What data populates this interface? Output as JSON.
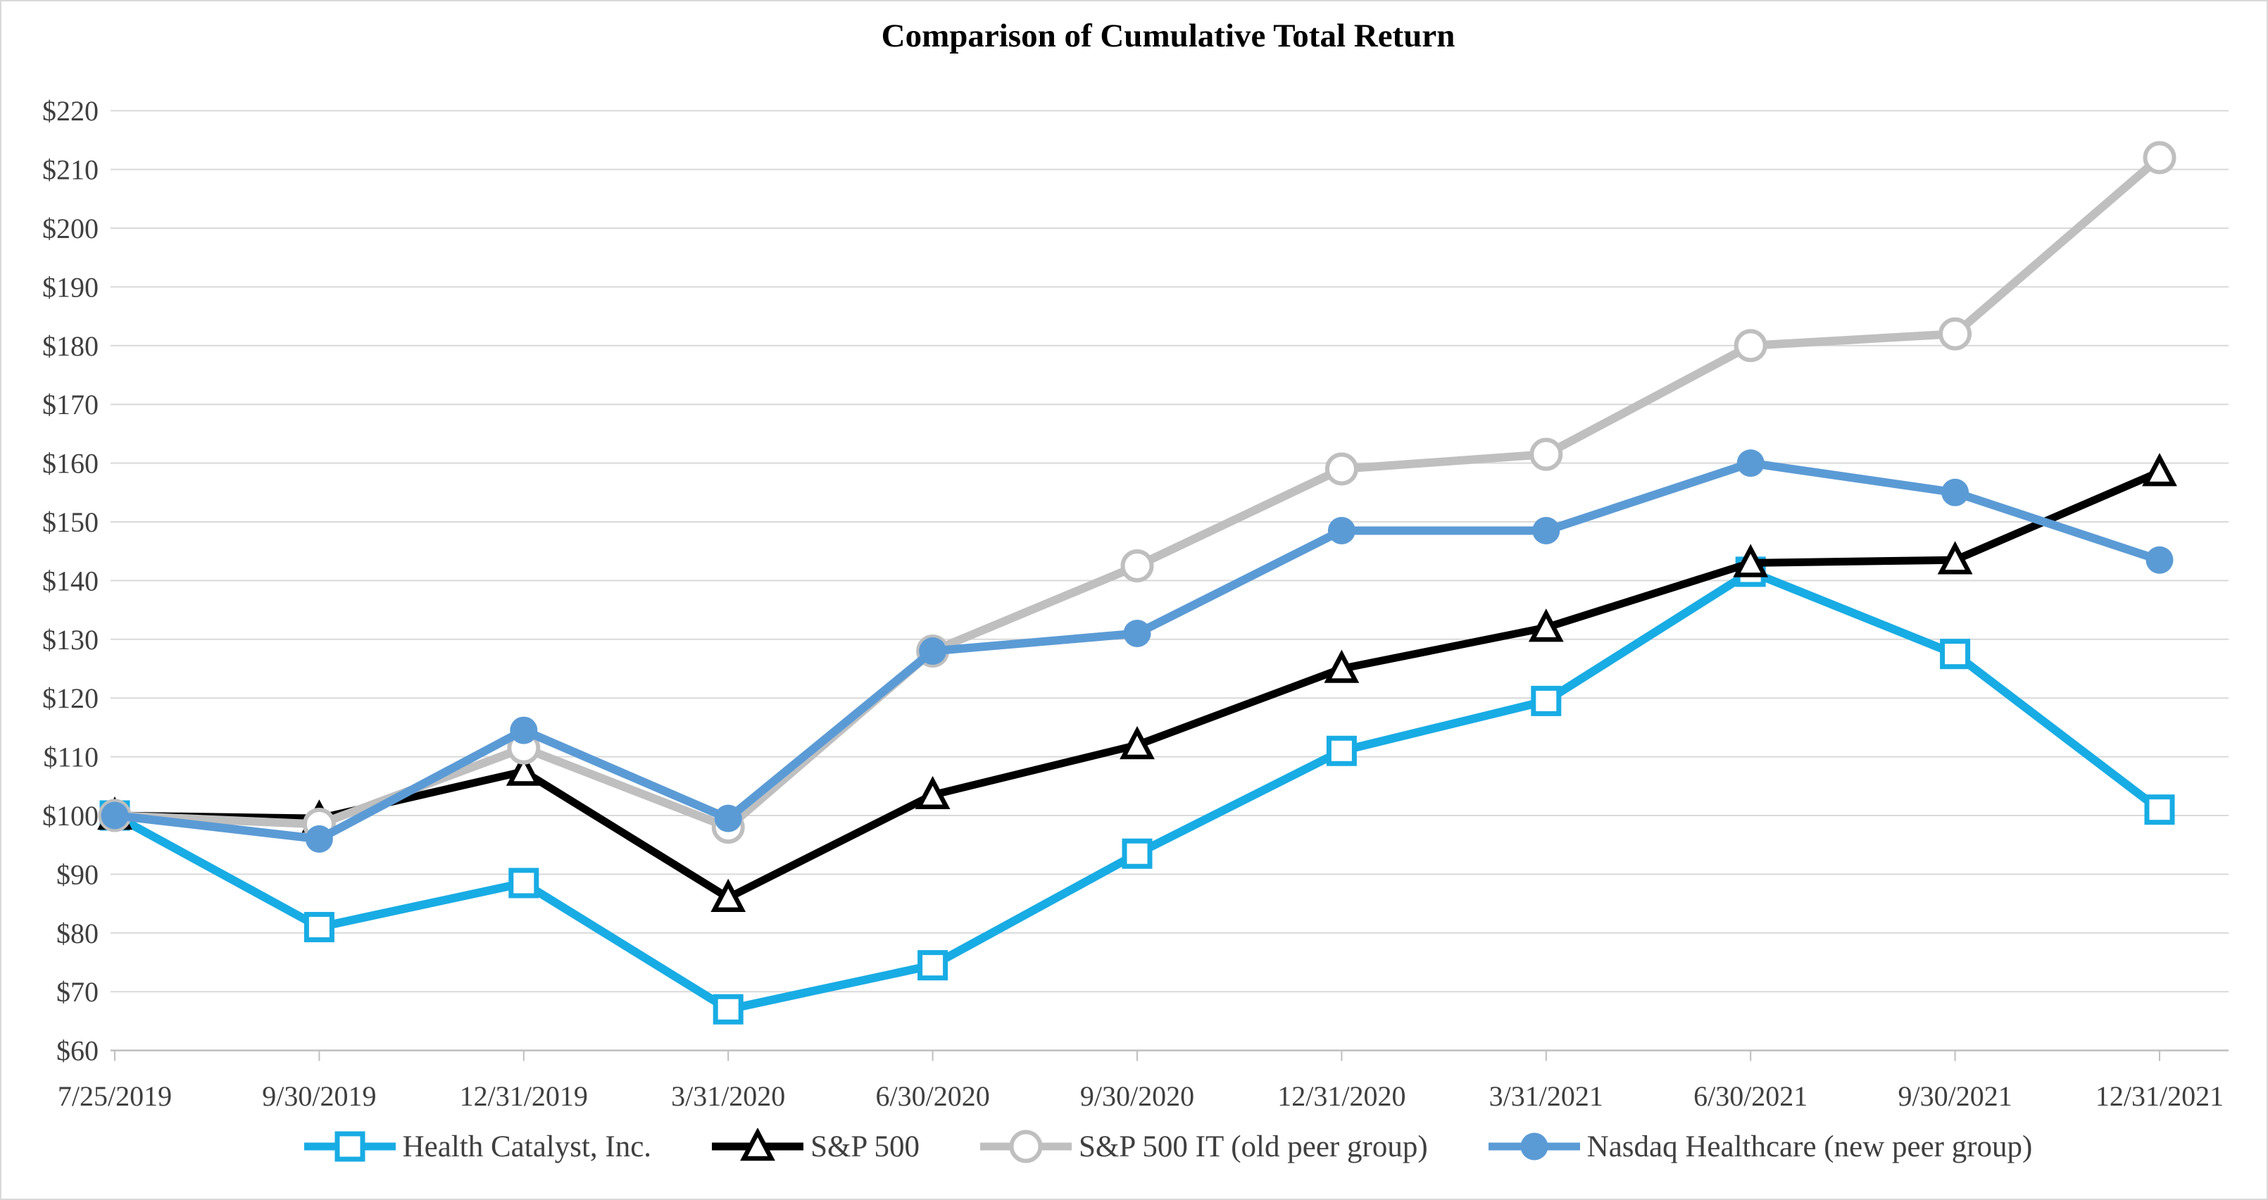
{
  "chart_data": {
    "type": "line",
    "title": "Comparison of Cumulative Total Return",
    "x": [
      "7/25/2019",
      "9/30/2019",
      "12/31/2019",
      "3/31/2020",
      "6/30/2020",
      "9/30/2020",
      "12/31/2020",
      "3/31/2021",
      "6/30/2021",
      "9/30/2021",
      "12/31/2021"
    ],
    "ylim": [
      60,
      220
    ],
    "ytick_step": 10,
    "ytick_prefix": "$",
    "grid": true,
    "legend_position": "bottom",
    "series": [
      {
        "name": "Health Catalyst, Inc.",
        "color": "#18ACE4",
        "marker": "square",
        "values": [
          100,
          81,
          88.5,
          67,
          74.5,
          93.5,
          111,
          119.5,
          141.5,
          127.5,
          101
        ]
      },
      {
        "name": "S&P 500",
        "color": "#000000",
        "marker": "triangle",
        "values": [
          100,
          99.5,
          107.5,
          86,
          103.5,
          112,
          125,
          132,
          143,
          143.5,
          158.5
        ]
      },
      {
        "name": "S&P 500 IT (old peer group)",
        "color": "#BFBFBF",
        "marker": "circle-open",
        "values": [
          100,
          98.5,
          111.5,
          98,
          128,
          142.5,
          159,
          161.5,
          180,
          182,
          212
        ]
      },
      {
        "name": "Nasdaq Healthcare (new peer group)",
        "color": "#5B9BD5",
        "marker": "circle-filled",
        "values": [
          100,
          96,
          114.5,
          99.5,
          128,
          131,
          148.5,
          148.5,
          160,
          155,
          143.5
        ]
      }
    ],
    "colors": {
      "grid": "#D9D9D9",
      "axis": "#BFBFBF",
      "label": "#3F3F3F",
      "title": "#000000",
      "background": "#FFFFFF",
      "border": "#D9D9D9"
    }
  }
}
